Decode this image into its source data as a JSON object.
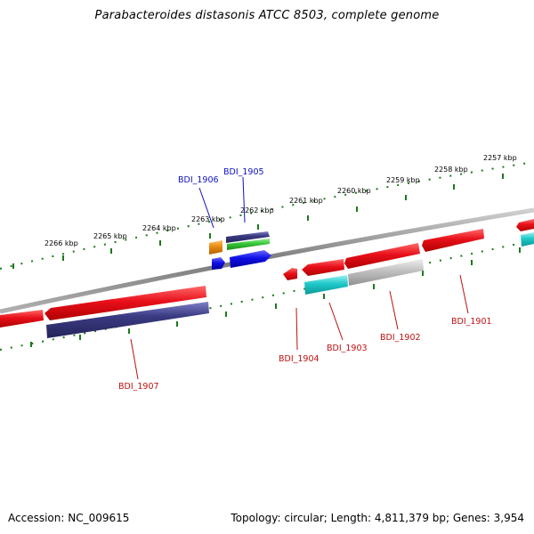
{
  "title": "Parabacteroides distasonis ATCC 8503, complete genome",
  "footer": {
    "accession": "Accession: NC_009615",
    "topology": "Topology: circular; Length: 4,811,379 bp; Genes: 3,954"
  },
  "scale_labels": [
    "2266 kbp",
    "2265 kbp",
    "2264 kbp",
    "2263 kbp",
    "2262 kbp",
    "2261 kbp",
    "2260 kbp",
    "2259 kbp",
    "2258 kbp",
    "2257 kbp"
  ],
  "gene_labels": {
    "bdi_1906": "BDI_1906",
    "bdi_1905": "BDI_1905",
    "bdi_1907": "BDI_1907",
    "bdi_1904": "BDI_1904",
    "bdi_1903": "BDI_1903",
    "bdi_1902": "BDI_1902",
    "bdi_1901": "BDI_1901"
  },
  "colors": {
    "backbone": "#8a8a8a",
    "tick": "#1a7a1a",
    "red_gene": "#e8101a",
    "navy_gene": "#3a3a82",
    "cyan_gene": "#1ec8c8",
    "grey_gene": "#c0c0c0",
    "blue_gene": "#1010e6",
    "orange_gene": "#e88a10",
    "green_gene": "#36c636",
    "blue_label": "#1010c0",
    "red_label": "#c01010"
  }
}
